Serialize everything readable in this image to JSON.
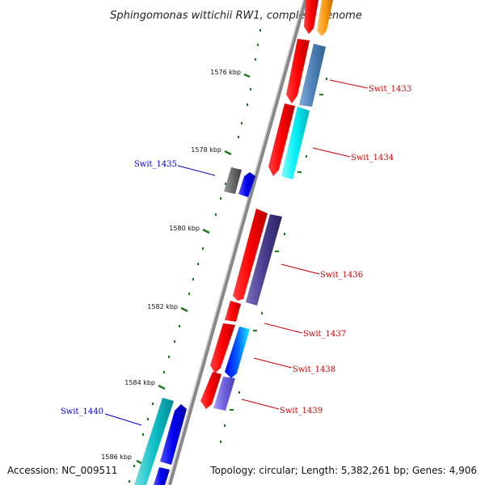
{
  "title": "Sphingomonas wittichii RW1, complete genome",
  "footer": {
    "accession": "Accession: NC_009511",
    "topology": "Topology: circular; Length: 5,382,261 bp; Genes: 4,906"
  },
  "scale": {
    "ticks": [
      "1576 kbp",
      "1578 kbp",
      "1580 kbp",
      "1582 kbp",
      "1584 kbp",
      "1586 kbp"
    ]
  },
  "genes": {
    "swit_1433": "Swit_1433",
    "swit_1434": "Swit_1434",
    "swit_1435": "Swit_1435",
    "swit_1436": "Swit_1436",
    "swit_1437": "Swit_1437",
    "swit_1438": "Swit_1438",
    "swit_1439": "Swit_1439",
    "swit_1440": "Swit_1440"
  },
  "colors": {
    "forward_label": "#cc0000",
    "reverse_label": "#0000cc",
    "backbone": "#888888",
    "tick": "#1a7a1a"
  }
}
